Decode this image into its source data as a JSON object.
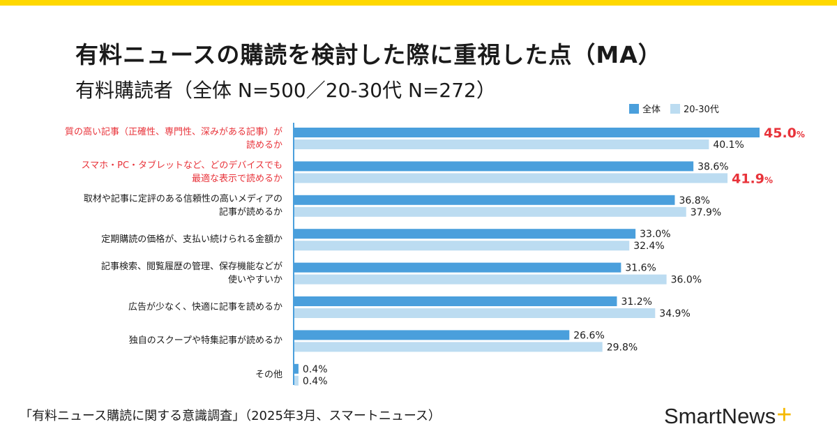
{
  "title": "有料ニュースの購読を検討した際に重視した点（MA）",
  "subtitle": "有料購読者（全体 N=500／20-30代 N=272）",
  "footer": "「有料ニュース購読に関する意識調査」（2025年3月、スマートニュース）",
  "logo": {
    "text": "SmartNews",
    "mark": "+"
  },
  "colors": {
    "series_all": "#4a9fdc",
    "series_2030": "#bcdcf1",
    "highlight": "#e8333a",
    "top_bar": "#ffd800"
  },
  "chart_data": {
    "type": "bar",
    "orientation": "horizontal",
    "categories": [
      "質の高い記事（正確性、専門性、深みがある記事）が\n読めるか",
      "スマホ・PC・タブレットなど、どのデバイスでも\n最適な表示で読めるか",
      "取材や記事に定評のある信頼性の高いメディアの\n記事が読めるか",
      "定期購読の価格が、支払い続けられる金額か",
      "記事検索、閲覧履歴の管理、保存機能などが\n使いやすいか",
      "広告が少なく、快適に記事を読めるか",
      "独自のスクープや特集記事が読めるか",
      "その他"
    ],
    "highlighted_categories": [
      0,
      1
    ],
    "series": [
      {
        "name": "全体",
        "values": [
          45.0,
          38.6,
          36.8,
          33.0,
          31.6,
          31.2,
          26.6,
          0.4
        ],
        "highlight_index": 0
      },
      {
        "name": "20-30代",
        "values": [
          40.1,
          41.9,
          37.9,
          32.4,
          36.0,
          34.9,
          29.8,
          0.4
        ],
        "highlight_index": 1
      }
    ],
    "value_suffix": "%",
    "xlim": [
      0,
      45
    ],
    "grid": false,
    "legend": "top-right"
  }
}
